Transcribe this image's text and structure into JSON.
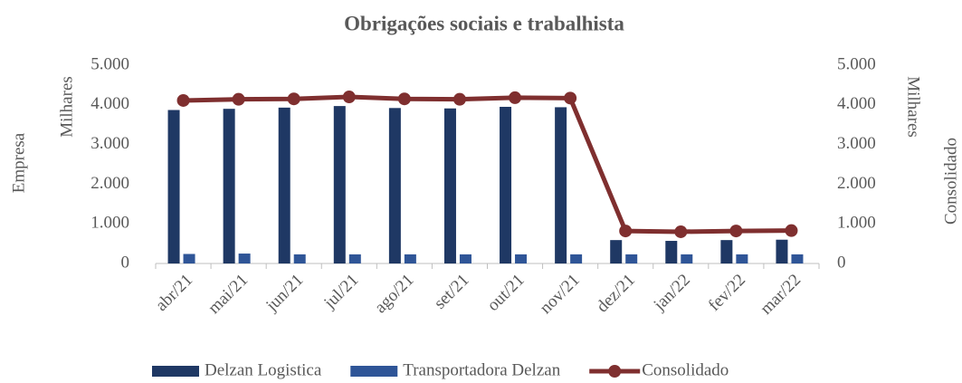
{
  "chart_data": {
    "type": "bar",
    "title": "Obrigações sociais e trabalhista",
    "y_label": "Empresa",
    "y_unit": "Milhares",
    "y2_label": "Consolidado",
    "y2_unit": "Milhares",
    "categories": [
      "abr/21",
      "mai/21",
      "jun/21",
      "jul/21",
      "ago/21",
      "set/21",
      "out/21",
      "nov/21",
      "dez/21",
      "jan/22",
      "fev/22",
      "mar/22"
    ],
    "series": [
      {
        "name": "Delzan Logistica",
        "color": "#1f3864",
        "values": [
          3870,
          3900,
          3930,
          3970,
          3920,
          3910,
          3950,
          3940,
          590,
          570,
          590,
          600
        ]
      },
      {
        "name": "Transportadora Delzan",
        "color": "#2f5597",
        "values": [
          240,
          250,
          230,
          230,
          230,
          230,
          230,
          230,
          230,
          230,
          230,
          230
        ]
      },
      {
        "name": "Consolidado",
        "color": "#7f2f2f",
        "type": "line",
        "axis": "y2",
        "values": [
          4110,
          4140,
          4150,
          4200,
          4150,
          4140,
          4180,
          4170,
          820,
          800,
          820,
          830
        ]
      }
    ],
    "ylim": [
      0,
      5000
    ],
    "yticks": [
      0,
      {
        "value": 1000,
        "label": "1.000"
      },
      {
        "value": 2000,
        "label": "2.000"
      },
      {
        "value": 3000,
        "label": "3.000"
      },
      {
        "value": 4000,
        "label": "4.000"
      },
      {
        "value": 5000,
        "label": "5.000"
      }
    ],
    "y2lim": [
      0,
      5000
    ],
    "y2ticks": [
      0,
      {
        "value": 1000,
        "label": "1.000"
      },
      {
        "value": 2000,
        "label": "2.000"
      },
      {
        "value": 3000,
        "label": "3.000"
      },
      {
        "value": 4000,
        "label": "4.000"
      },
      {
        "value": 5000,
        "label": "5.000"
      }
    ],
    "grid": false,
    "legend": "bottom"
  }
}
